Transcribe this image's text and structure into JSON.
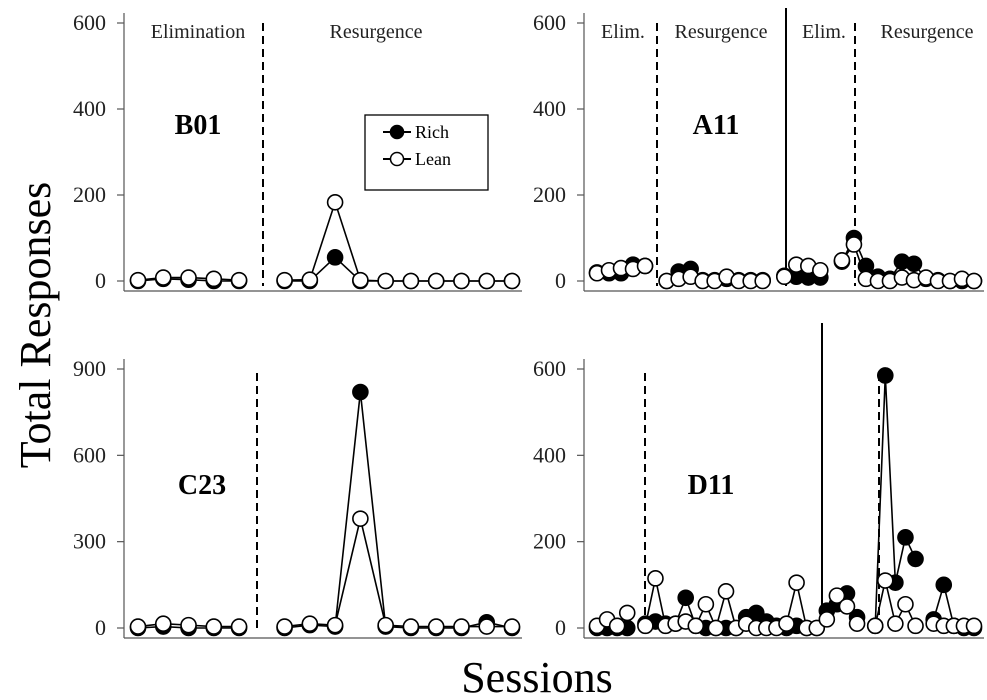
{
  "figure": {
    "ylabel": "Total Responses",
    "xlabel": "Sessions",
    "legend": {
      "rich": "Rich",
      "lean": "Lean",
      "placement": "top-center of top-left panel"
    }
  },
  "chart_data": [
    {
      "type": "line",
      "subject": "B01",
      "ylim": [
        0,
        600
      ],
      "yticks": [
        0,
        200,
        400,
        600
      ],
      "phase_labels": [
        "Elimination",
        "Resurgence"
      ],
      "x": [
        1,
        2,
        3,
        4,
        5,
        6,
        7,
        8,
        9,
        10,
        11,
        12,
        13,
        14,
        15,
        16,
        17,
        18,
        19
      ],
      "dividers": [
        {
          "after": 5,
          "style": "dashed"
        }
      ],
      "series": [
        {
          "name": "Rich",
          "values": [
            0,
            5,
            3,
            0,
            0,
            0,
            0,
            55,
            0,
            0,
            0,
            0,
            0,
            0,
            0,
            null,
            null,
            null,
            null
          ]
        },
        {
          "name": "Lean",
          "values": [
            2,
            8,
            8,
            5,
            2,
            2,
            3,
            183,
            2,
            0,
            0,
            0,
            0,
            0,
            0,
            null,
            null,
            null,
            null
          ]
        }
      ]
    },
    {
      "type": "line",
      "subject": "A11",
      "ylim": [
        0,
        600
      ],
      "yticks": [
        0,
        200,
        400,
        600
      ],
      "phase_labels": [
        "Elim.",
        "Resurgence",
        "Elim.",
        "Resurgence"
      ],
      "dividers": [
        {
          "after": 5,
          "style": "dashed"
        },
        {
          "after": 14,
          "style": "solid"
        },
        {
          "after": 18,
          "style": "dashed"
        }
      ],
      "series": [
        {
          "name": "Rich",
          "values": [
            20,
            18,
            18,
            38,
            35,
            0,
            22,
            28,
            2,
            2,
            5,
            2,
            2,
            2,
            12,
            10,
            8,
            8,
            45,
            100,
            35,
            10,
            5,
            45,
            40,
            5,
            2,
            0,
            0,
            0
          ]
        },
        {
          "name": "Lean",
          "values": [
            18,
            25,
            30,
            28,
            35,
            0,
            5,
            10,
            0,
            0,
            10,
            0,
            0,
            0,
            10,
            38,
            35,
            25,
            48,
            85,
            5,
            0,
            0,
            8,
            2,
            8,
            0,
            0,
            5,
            0
          ]
        }
      ]
    },
    {
      "type": "line",
      "subject": "C23",
      "ylim": [
        0,
        900
      ],
      "yticks": [
        0,
        300,
        600,
        900
      ],
      "phase_labels": [],
      "dividers": [
        {
          "after": 5,
          "style": "dashed"
        }
      ],
      "series": [
        {
          "name": "Rich",
          "values": [
            0,
            5,
            0,
            0,
            0,
            0,
            10,
            5,
            820,
            5,
            0,
            0,
            0,
            20,
            0
          ]
        },
        {
          "name": "Lean",
          "values": [
            5,
            15,
            10,
            5,
            5,
            5,
            15,
            10,
            380,
            10,
            5,
            5,
            5,
            5,
            5
          ]
        }
      ]
    },
    {
      "type": "line",
      "subject": "D11",
      "ylim": [
        0,
        600
      ],
      "yticks": [
        0,
        200,
        400,
        600
      ],
      "phase_labels": [],
      "dividers": [
        {
          "after": 4,
          "style": "dashed"
        },
        {
          "after": 26,
          "style": "solid"
        },
        {
          "after": 31,
          "style": "dashed"
        }
      ],
      "series": [
        {
          "name": "Rich",
          "values": [
            0,
            0,
            0,
            0,
            10,
            15,
            10,
            10,
            70,
            5,
            0,
            0,
            0,
            0,
            25,
            35,
            15,
            5,
            0,
            5,
            0,
            0,
            40,
            55,
            80,
            25,
            5,
            585,
            105,
            210,
            160,
            20,
            100,
            5,
            0,
            0
          ]
        },
        {
          "name": "Lean",
          "values": [
            5,
            20,
            5,
            35,
            5,
            115,
            5,
            10,
            15,
            5,
            55,
            0,
            85,
            0,
            10,
            0,
            0,
            0,
            10,
            105,
            0,
            0,
            20,
            75,
            50,
            10,
            5,
            110,
            10,
            55,
            5,
            10,
            5,
            5,
            5,
            5
          ]
        }
      ]
    }
  ]
}
